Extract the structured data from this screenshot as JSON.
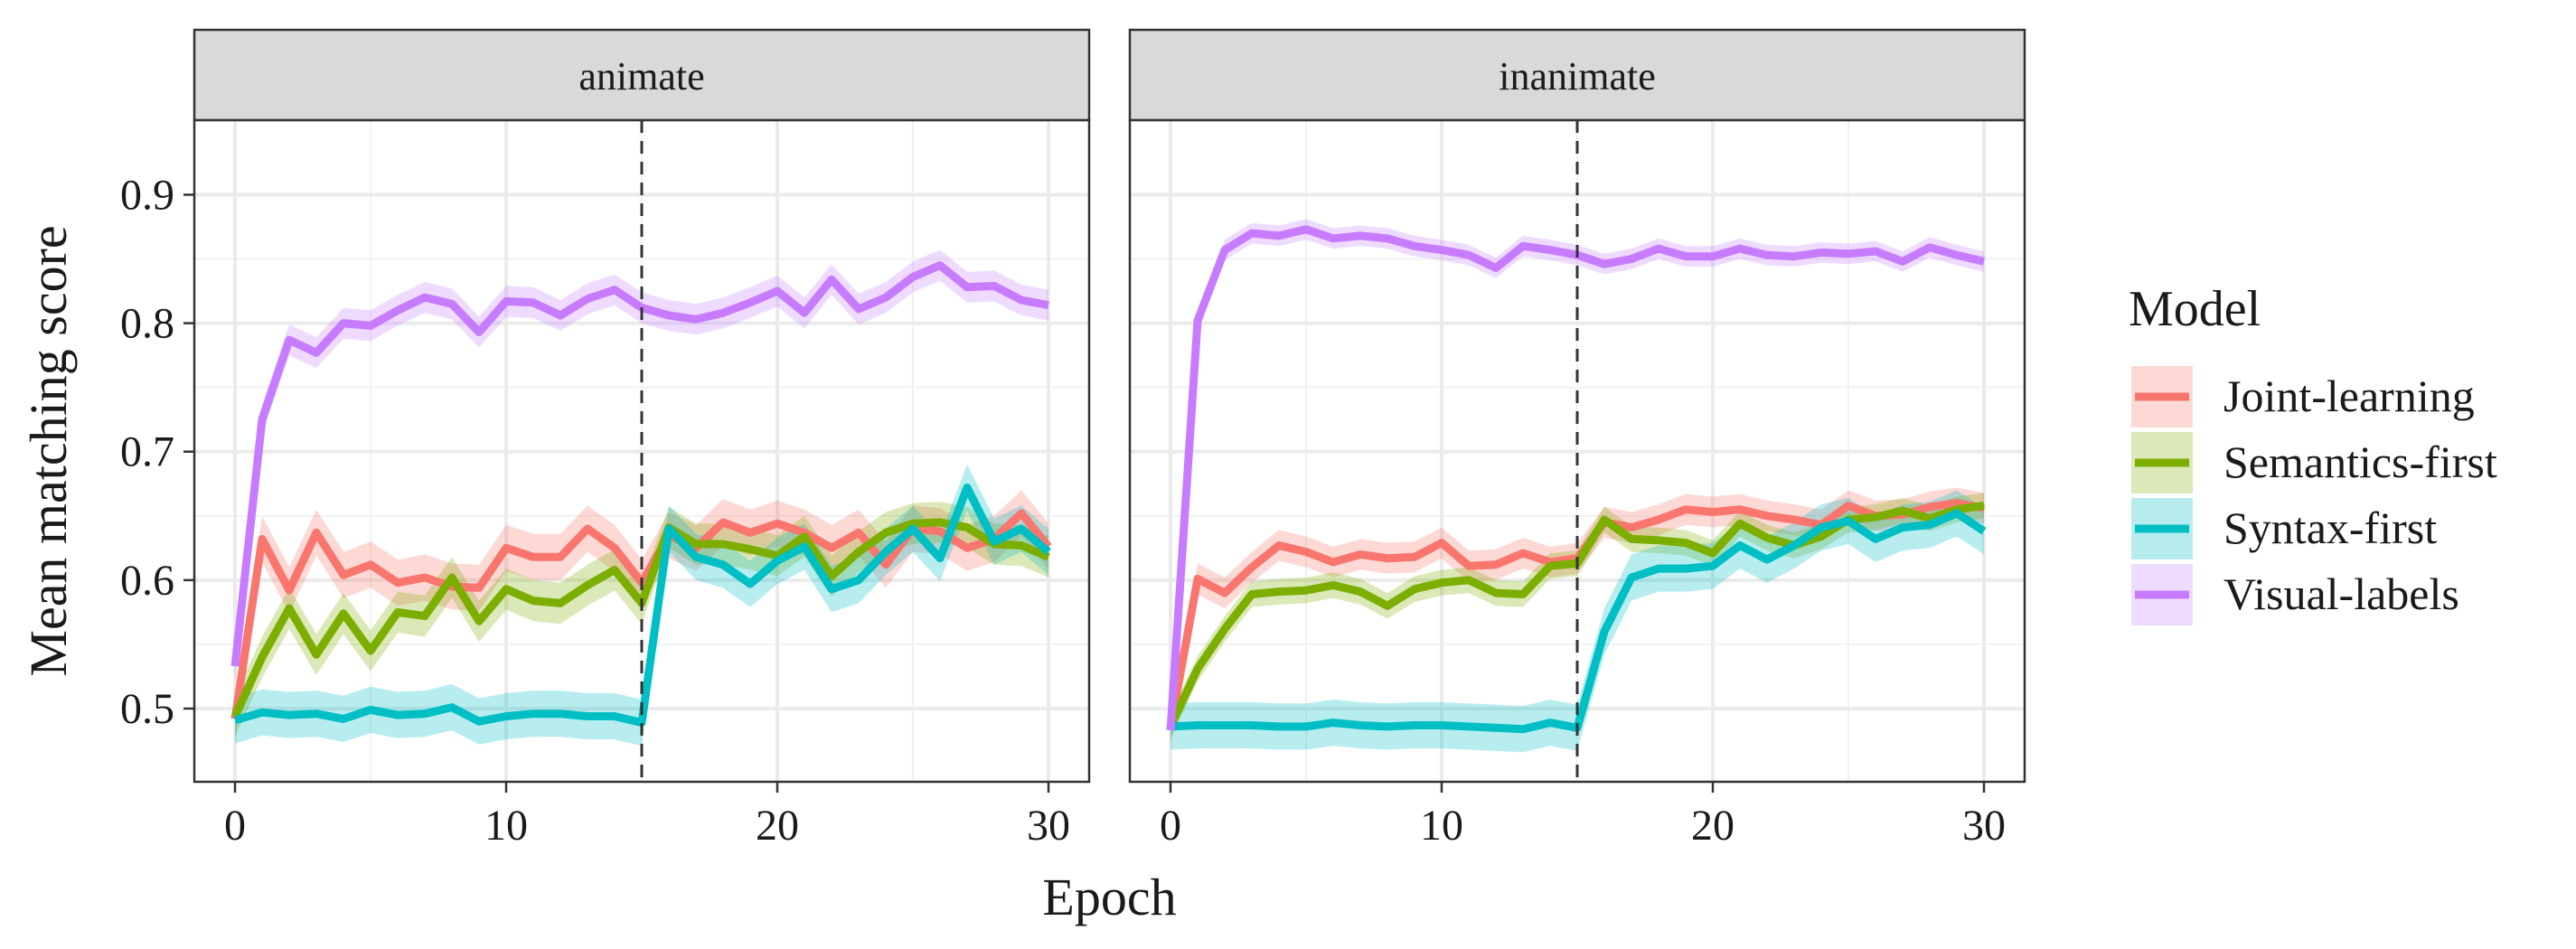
{
  "chart_data": {
    "type": "line",
    "xlabel": "Epoch",
    "ylabel": "Mean matching score",
    "xlim": [
      -1.5,
      31.5
    ],
    "ylim": [
      0.443,
      0.958
    ],
    "xticks": [
      0,
      10,
      20,
      30
    ],
    "yticks": [
      0.5,
      0.6,
      0.7,
      0.8,
      0.9
    ],
    "grid": true,
    "reference_line_x": 15,
    "legend": {
      "title": "Model",
      "position": "right",
      "entries": [
        "Joint-learning",
        "Semantics-first",
        "Syntax-first",
        "Visual-labels"
      ]
    },
    "colors": {
      "Joint-learning": "#F8766D",
      "Semantics-first": "#7CAE00",
      "Syntax-first": "#00BFC4",
      "Visual-labels": "#C77CFF"
    },
    "panels": [
      {
        "label": "animate",
        "series": [
          {
            "name": "Joint-learning",
            "ci": 0.018,
            "y": [
              0.492,
              0.632,
              0.592,
              0.637,
              0.604,
              0.612,
              0.598,
              0.602,
              0.595,
              0.594,
              0.625,
              0.618,
              0.618,
              0.64,
              0.625,
              0.598,
              0.635,
              0.625,
              0.645,
              0.637,
              0.644,
              0.637,
              0.625,
              0.637,
              0.612,
              0.64,
              0.638,
              0.625,
              0.632,
              0.652,
              0.626
            ]
          },
          {
            "name": "Semantics-first",
            "ci": 0.016,
            "y": [
              0.494,
              0.54,
              0.578,
              0.542,
              0.574,
              0.545,
              0.575,
              0.572,
              0.602,
              0.568,
              0.593,
              0.584,
              0.582,
              0.596,
              0.608,
              0.582,
              0.641,
              0.628,
              0.628,
              0.624,
              0.619,
              0.634,
              0.603,
              0.622,
              0.637,
              0.644,
              0.645,
              0.641,
              0.628,
              0.627,
              0.618
            ]
          },
          {
            "name": "Syntax-first",
            "ci": 0.018,
            "y": [
              0.491,
              0.497,
              0.495,
              0.496,
              0.492,
              0.499,
              0.495,
              0.496,
              0.501,
              0.49,
              0.494,
              0.496,
              0.496,
              0.494,
              0.494,
              0.489,
              0.64,
              0.618,
              0.612,
              0.597,
              0.615,
              0.626,
              0.593,
              0.6,
              0.622,
              0.64,
              0.617,
              0.672,
              0.63,
              0.64,
              0.622
            ]
          },
          {
            "name": "Visual-labels",
            "ci": 0.012,
            "y": [
              0.533,
              0.725,
              0.787,
              0.777,
              0.8,
              0.798,
              0.81,
              0.82,
              0.815,
              0.793,
              0.817,
              0.816,
              0.806,
              0.819,
              0.826,
              0.812,
              0.806,
              0.803,
              0.808,
              0.816,
              0.825,
              0.808,
              0.834,
              0.811,
              0.82,
              0.836,
              0.845,
              0.828,
              0.829,
              0.818,
              0.814
            ]
          }
        ]
      },
      {
        "label": "inanimate",
        "series": [
          {
            "name": "Joint-learning",
            "ci": 0.012,
            "y": [
              0.485,
              0.601,
              0.59,
              0.61,
              0.627,
              0.622,
              0.614,
              0.62,
              0.617,
              0.618,
              0.629,
              0.611,
              0.612,
              0.621,
              0.614,
              0.617,
              0.645,
              0.641,
              0.647,
              0.655,
              0.653,
              0.655,
              0.65,
              0.647,
              0.643,
              0.658,
              0.65,
              0.651,
              0.657,
              0.66,
              0.656
            ]
          },
          {
            "name": "Semantics-first",
            "ci": 0.01,
            "y": [
              0.486,
              0.531,
              0.562,
              0.589,
              0.591,
              0.592,
              0.596,
              0.591,
              0.58,
              0.593,
              0.598,
              0.6,
              0.59,
              0.589,
              0.611,
              0.613,
              0.647,
              0.632,
              0.631,
              0.629,
              0.621,
              0.644,
              0.633,
              0.627,
              0.634,
              0.647,
              0.649,
              0.654,
              0.648,
              0.655,
              0.658
            ]
          },
          {
            "name": "Syntax-first",
            "ci": 0.018,
            "y": [
              0.486,
              0.487,
              0.487,
              0.487,
              0.486,
              0.486,
              0.489,
              0.487,
              0.486,
              0.487,
              0.487,
              0.486,
              0.485,
              0.484,
              0.489,
              0.485,
              0.56,
              0.602,
              0.609,
              0.609,
              0.611,
              0.627,
              0.616,
              0.627,
              0.641,
              0.646,
              0.632,
              0.641,
              0.643,
              0.652,
              0.638
            ]
          },
          {
            "name": "Visual-labels",
            "ci": 0.008,
            "y": [
              0.483,
              0.802,
              0.857,
              0.87,
              0.868,
              0.873,
              0.866,
              0.868,
              0.866,
              0.86,
              0.857,
              0.853,
              0.843,
              0.86,
              0.857,
              0.853,
              0.846,
              0.85,
              0.858,
              0.852,
              0.852,
              0.858,
              0.853,
              0.852,
              0.855,
              0.854,
              0.856,
              0.848,
              0.859,
              0.853,
              0.848
            ]
          }
        ]
      }
    ]
  }
}
